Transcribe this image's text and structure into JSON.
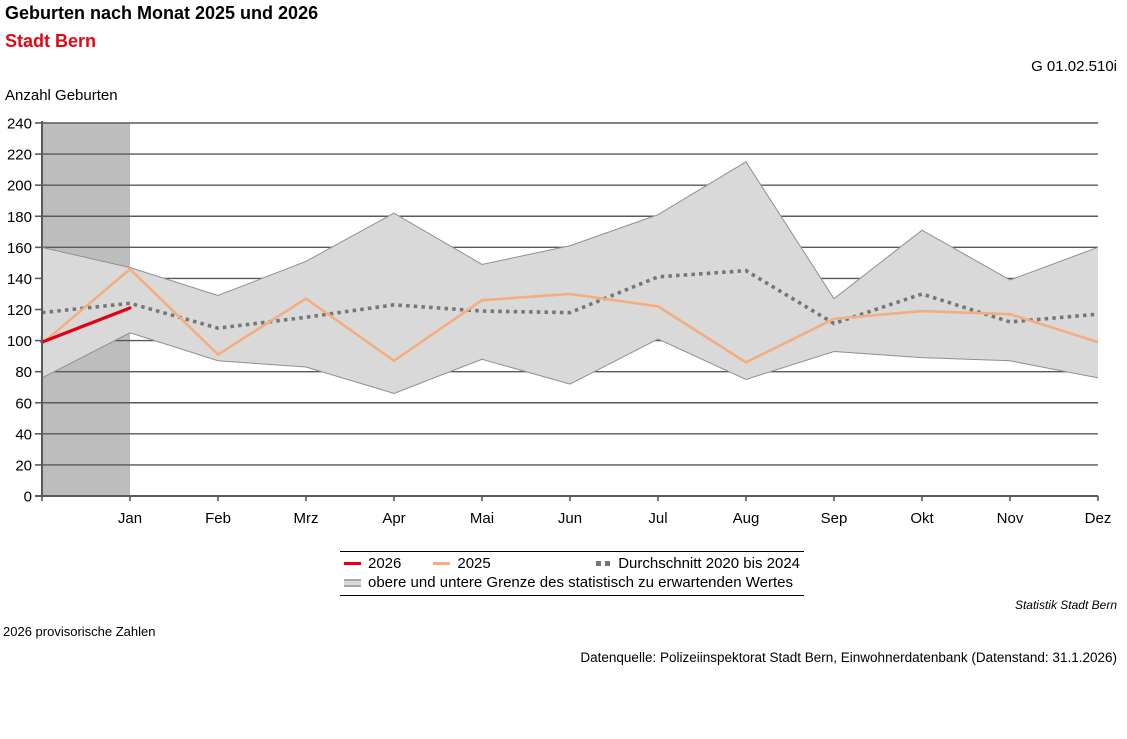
{
  "header": {
    "title": "Geburten nach Monat 2025 und 2026",
    "subtitle": "Stadt Bern",
    "code": "G 01.02.510i",
    "y_axis_title": "Anzahl Geburten"
  },
  "legend": {
    "series_2026": "2026",
    "series_2025": "2025",
    "series_avg": "Durchschnitt 2020 bis 2024",
    "band": "obere und untere Grenze des statistisch zu erwartenden Wertes"
  },
  "footer": {
    "source_org": "Statistik Stadt Bern",
    "note": "2026 provisorische Zahlen",
    "datasource": "Datenquelle: Polizeiinspektorat Stadt Bern, Einwohnerdatenbank (Datenstand: 31.1.2026)"
  },
  "colors": {
    "red_2026": "#e30010",
    "orange_2025": "#f4ad7f",
    "avg_gray": "#767676",
    "band_fill": "#d9d9d9",
    "band_edge": "#8f8f8f",
    "highlight_column": "#bdbdbd",
    "gridline": "#595959",
    "subtitle_red": "#e30613"
  },
  "chart_data": {
    "type": "line",
    "title": "Geburten nach Monat 2025 und 2026",
    "ylabel": "Anzahl Geburten",
    "x_labels": [
      "",
      "Jan",
      "Feb",
      "Mrz",
      "Apr",
      "Mai",
      "Jun",
      "Jul",
      "Aug",
      "Sep",
      "Okt",
      "Nov",
      "Dez"
    ],
    "ylim": [
      0,
      240
    ],
    "ytick_step": 20,
    "grid": true,
    "legend_position": "bottom",
    "highlight_span": [
      0,
      1
    ],
    "series": [
      {
        "name": "2026",
        "style": "solid",
        "values": [
          99,
          121,
          null,
          null,
          null,
          null,
          null,
          null,
          null,
          null,
          null,
          null,
          null
        ]
      },
      {
        "name": "2025",
        "style": "solid",
        "values": [
          98,
          146,
          91,
          127,
          87,
          126,
          130,
          122,
          86,
          114,
          119,
          117,
          99
        ]
      },
      {
        "name": "Durchschnitt 2020 bis 2024",
        "style": "dotted",
        "values": [
          118,
          124,
          108,
          115,
          123,
          119,
          118,
          141,
          145,
          111,
          130,
          112,
          117
        ]
      }
    ],
    "band": {
      "name": "obere und untere Grenze des statistisch zu erwartenden Wertes",
      "upper": [
        160,
        147,
        129,
        151,
        182,
        149,
        161,
        181,
        215,
        127,
        171,
        139,
        160
      ],
      "lower": [
        76,
        105,
        87,
        83,
        66,
        88,
        72,
        101,
        75,
        93,
        89,
        87,
        76
      ]
    }
  }
}
